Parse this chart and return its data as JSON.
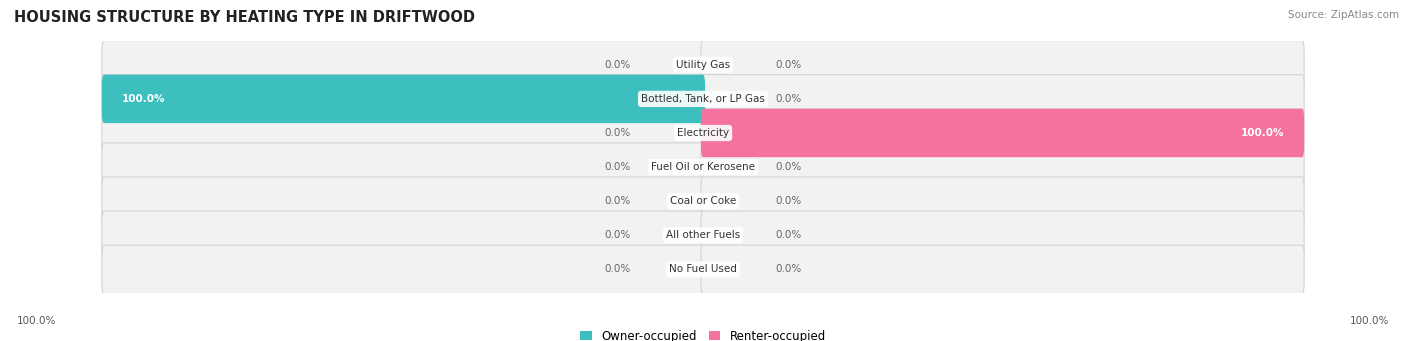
{
  "title": "HOUSING STRUCTURE BY HEATING TYPE IN DRIFTWOOD",
  "source": "Source: ZipAtlas.com",
  "categories": [
    "Utility Gas",
    "Bottled, Tank, or LP Gas",
    "Electricity",
    "Fuel Oil or Kerosene",
    "Coal or Coke",
    "All other Fuels",
    "No Fuel Used"
  ],
  "owner_values": [
    0.0,
    100.0,
    0.0,
    0.0,
    0.0,
    0.0,
    0.0
  ],
  "renter_values": [
    0.0,
    0.0,
    100.0,
    0.0,
    0.0,
    0.0,
    0.0
  ],
  "owner_color": "#3dbfbf",
  "renter_color": "#f472a0",
  "bar_bg_color": "#f2f2f2",
  "fig_width": 14.06,
  "fig_height": 3.41,
  "dpi": 100
}
